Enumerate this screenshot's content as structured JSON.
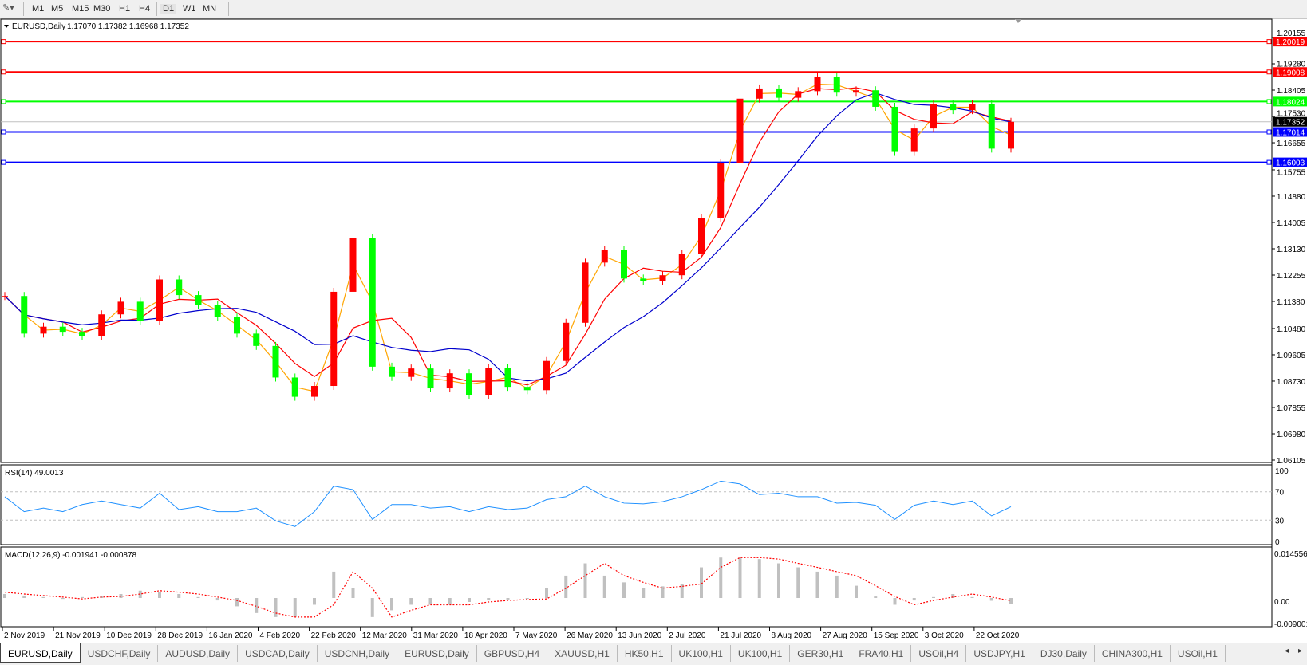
{
  "toolbar": {
    "timeframes": [
      "M1",
      "M5",
      "M15",
      "M30",
      "H1",
      "H4",
      "D1",
      "W1",
      "MN"
    ],
    "active_timeframe": "D1"
  },
  "chart": {
    "title": "EURUSD,Daily",
    "ohlc": "1.17070 1.17382 1.16968 1.17352",
    "rsi_label": "RSI(14) 49.0013",
    "macd_label": "MACD(12,26,9) -0.001941 -0.000878"
  },
  "colors": {
    "bull_candle": "#ff0000",
    "bear_candle": "#00ff00",
    "ma_fast": "#ffa500",
    "ma_mid": "#ff0000",
    "ma_slow": "#0000cd",
    "rsi_line": "#1e90ff",
    "macd_hist": "#c0c0c0",
    "macd_signal": "#ff0000"
  },
  "chart_data": [
    {
      "type": "candlestick",
      "symbol": "EURUSD,Daily",
      "ylim": [
        1.06105,
        1.20155
      ],
      "y_ticks": [
        "1.20155",
        "1.19280",
        "1.18405",
        "1.17530",
        "1.16655",
        "1.15755",
        "1.14880",
        "1.14005",
        "1.13130",
        "1.12255",
        "1.11380",
        "1.10480",
        "1.09605",
        "1.08730",
        "1.07855",
        "1.06980",
        "1.06105"
      ],
      "x_tick_labels": [
        "2 Nov 2019",
        "21 Nov 2019",
        "10 Dec 2019",
        "28 Dec 2019",
        "16 Jan 2020",
        "4 Feb 2020",
        "22 Feb 2020",
        "12 Mar 2020",
        "31 Mar 2020",
        "18 Apr 2020",
        "7 May 2020",
        "26 May 2020",
        "13 Jun 2020",
        "2 Jul 2020",
        "21 Jul 2020",
        "8 Aug 2020",
        "27 Aug 2020",
        "15 Sep 2020",
        "3 Oct 2020",
        "22 Oct 2020"
      ],
      "dates": [
        "2019-11-01",
        "2019-11-08",
        "2019-11-15",
        "2019-11-22",
        "2019-11-29",
        "2019-12-06",
        "2019-12-13",
        "2019-12-20",
        "2019-12-27",
        "2020-01-03",
        "2020-01-10",
        "2020-01-17",
        "2020-01-24",
        "2020-01-31",
        "2020-02-07",
        "2020-02-14",
        "2020-02-21",
        "2020-02-28",
        "2020-03-06",
        "2020-03-13",
        "2020-03-20",
        "2020-03-27",
        "2020-04-03",
        "2020-04-10",
        "2020-04-17",
        "2020-04-24",
        "2020-05-01",
        "2020-05-08",
        "2020-05-15",
        "2020-05-22",
        "2020-05-29",
        "2020-06-05",
        "2020-06-12",
        "2020-06-19",
        "2020-06-26",
        "2020-07-03",
        "2020-07-10",
        "2020-07-17",
        "2020-07-24",
        "2020-07-31",
        "2020-08-07",
        "2020-08-14",
        "2020-08-21",
        "2020-08-28",
        "2020-09-04",
        "2020-09-11",
        "2020-09-18",
        "2020-09-25",
        "2020-10-02",
        "2020-10-09",
        "2020-10-16",
        "2020-10-23",
        "2020-10-30"
      ],
      "close": [
        1.1156,
        1.1031,
        1.1054,
        1.1037,
        1.1023,
        1.1095,
        1.1137,
        1.1073,
        1.1211,
        1.1159,
        1.1126,
        1.1087,
        1.1031,
        1.099,
        1.0885,
        1.0821,
        1.0857,
        1.117,
        1.135,
        1.0921,
        1.0887,
        1.0915,
        1.0849,
        1.0899,
        1.0826,
        1.0918,
        1.0854,
        1.0843,
        1.094,
        1.1067,
        1.1267,
        1.1308,
        1.1214,
        1.1206,
        1.1225,
        1.1295,
        1.1414,
        1.1599,
        1.1812,
        1.1846,
        1.1815,
        1.1837,
        1.1884,
        1.1832,
        1.184,
        1.1785,
        1.1635,
        1.1713,
        1.1793,
        1.1774,
        1.1793,
        1.1646,
        1.1735
      ],
      "levels": [
        {
          "price": "1.20019",
          "color": "#ff0000"
        },
        {
          "price": "1.19008",
          "color": "#ff0000"
        },
        {
          "price": "1.18024",
          "color": "#00ff00"
        },
        {
          "price": "1.17014",
          "color": "#0000ff"
        },
        {
          "price": "1.16003",
          "color": "#0000ff"
        }
      ],
      "bid": {
        "price": "1.17352",
        "color": "#000000"
      }
    },
    {
      "type": "line",
      "name": "RSI(14)",
      "ylim": [
        0,
        100
      ],
      "y_ticks": [
        "100",
        "70",
        "30",
        "0"
      ],
      "levels": [
        70,
        30
      ],
      "values": [
        63,
        42,
        47,
        42,
        52,
        57,
        52,
        47,
        68,
        45,
        49,
        42,
        42,
        47,
        29,
        21,
        42,
        78,
        73,
        31,
        52,
        52,
        47,
        49,
        42,
        49,
        45,
        47,
        59,
        63,
        78,
        63,
        54,
        53,
        56,
        63,
        73,
        85,
        81,
        66,
        68,
        63,
        63,
        54,
        55,
        51,
        31,
        51,
        57,
        52,
        57,
        36,
        49.0
      ]
    },
    {
      "type": "bar+line",
      "name": "MACD(12,26,9)",
      "ylim": [
        -0.009001,
        0.014556
      ],
      "y_ticks": [
        "0.014556",
        "0.00",
        "-0.009001"
      ],
      "main": [
        0.0013,
        0.0008,
        0.0003,
        -0.0003,
        0.0003,
        0.0005,
        0.0013,
        0.0024,
        0.0019,
        0.0013,
        0.0003,
        -0.0008,
        -0.0027,
        -0.0049,
        -0.0062,
        -0.0062,
        -0.0022,
        0.0086,
        0.0032,
        -0.0062,
        -0.004,
        -0.0022,
        -0.0022,
        -0.0022,
        -0.0013,
        -0.0008,
        -0.0005,
        -0.0003,
        0.0032,
        0.0073,
        0.0113,
        0.0073,
        0.0051,
        0.0032,
        0.0038,
        0.0046,
        0.01,
        0.0132,
        0.0132,
        0.0127,
        0.0113,
        0.01,
        0.0086,
        0.0073,
        0.004,
        0.0005,
        -0.0022,
        -0.0008,
        0.0003,
        0.0013,
        0.0003,
        -0.0009,
        -0.0019
      ],
      "signal": [
        0.0019,
        0.0013,
        0.0008,
        0.0003,
        -0.0003,
        0.0003,
        0.0005,
        0.0013,
        0.0024,
        0.0019,
        0.0013,
        0.0003,
        -0.0008,
        -0.0027,
        -0.0049,
        -0.0062,
        -0.0062,
        -0.0022,
        0.0086,
        0.0032,
        -0.0062,
        -0.004,
        -0.0022,
        -0.0022,
        -0.0022,
        -0.0013,
        -0.0008,
        -0.0005,
        -0.0003,
        0.0032,
        0.0073,
        0.0113,
        0.0073,
        0.0051,
        0.0032,
        0.0038,
        0.0046,
        0.01,
        0.0132,
        0.0132,
        0.0127,
        0.0113,
        0.01,
        0.0086,
        0.0073,
        0.004,
        0.0005,
        -0.0022,
        -0.0008,
        0.0003,
        0.0013,
        0.0003,
        -0.0009
      ]
    }
  ],
  "tabs": [
    "EURUSD,Daily",
    "USDCHF,Daily",
    "AUDUSD,Daily",
    "USDCAD,Daily",
    "USDCNH,Daily",
    "EURUSD,Daily",
    "GBPUSD,H4",
    "XAUUSD,H1",
    "HK50,H1",
    "UK100,H1",
    "UK100,H1",
    "GER30,H1",
    "FRA40,H1",
    "USOil,H4",
    "USDJPY,H1",
    "DJ30,Daily",
    "CHINA300,H1",
    "USOil,H1"
  ],
  "active_tab": "EURUSD,Daily",
  "tab_scroll": {
    "left": "◂",
    "right": "▸"
  }
}
